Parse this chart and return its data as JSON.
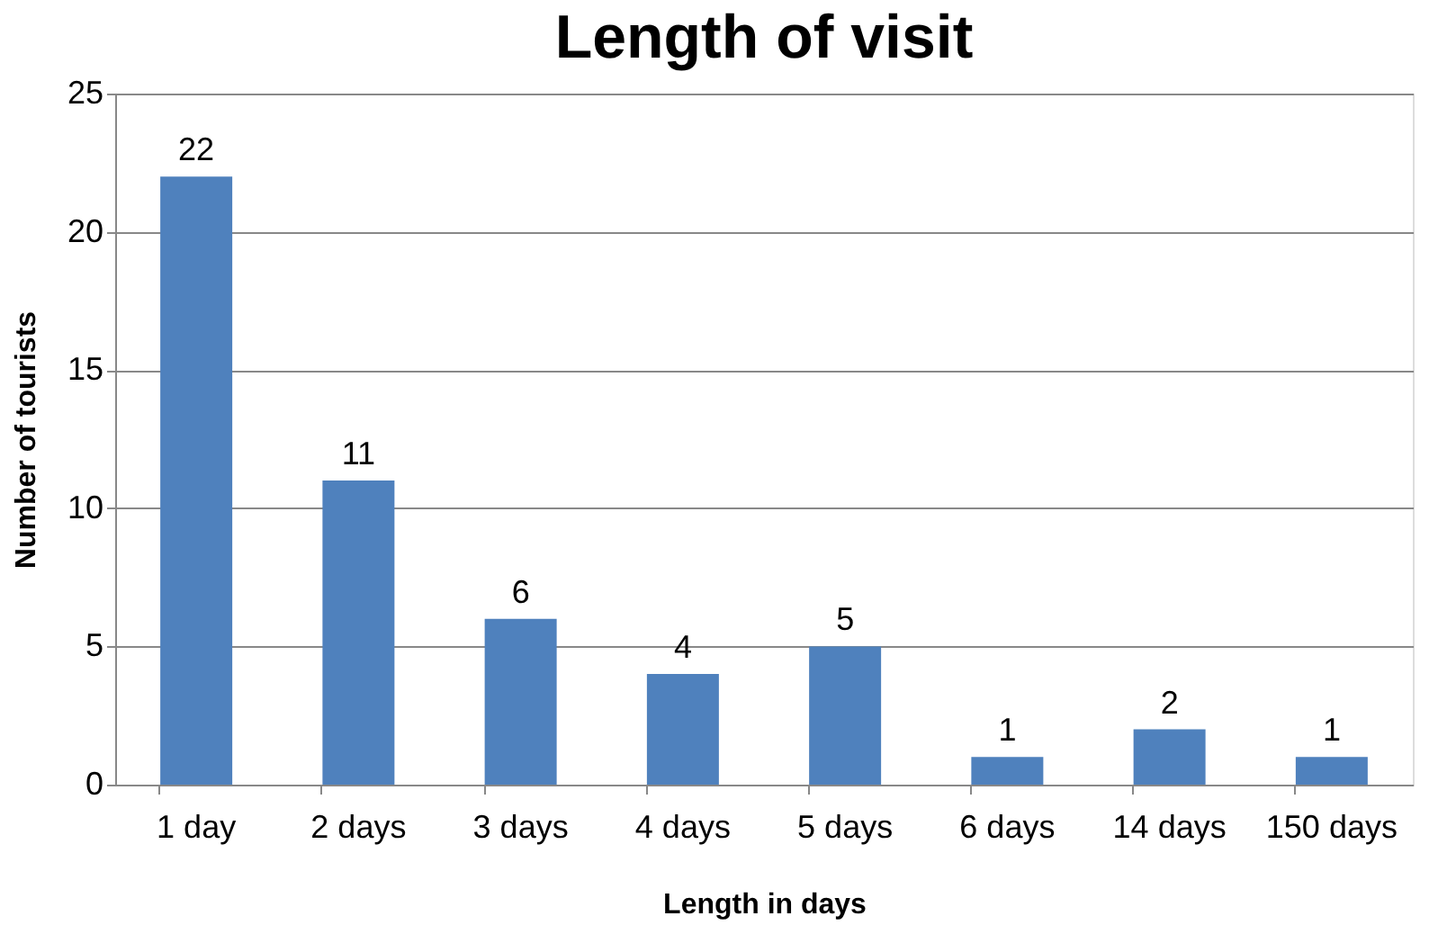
{
  "chart_data": {
    "type": "bar",
    "title": "Length of visit",
    "xlabel": "Length in days",
    "ylabel": "Number of tourists",
    "categories": [
      "1 day",
      "2 days",
      "3 days",
      "4 days",
      "5 days",
      "6 days",
      "14 days",
      "150 days"
    ],
    "values": [
      22,
      11,
      6,
      4,
      5,
      1,
      2,
      1
    ],
    "color": "#4f81bd",
    "ylim": [
      0,
      25
    ],
    "yticks": [
      0,
      5,
      10,
      15,
      20,
      25
    ],
    "grid": "y",
    "data_labels": true
  }
}
